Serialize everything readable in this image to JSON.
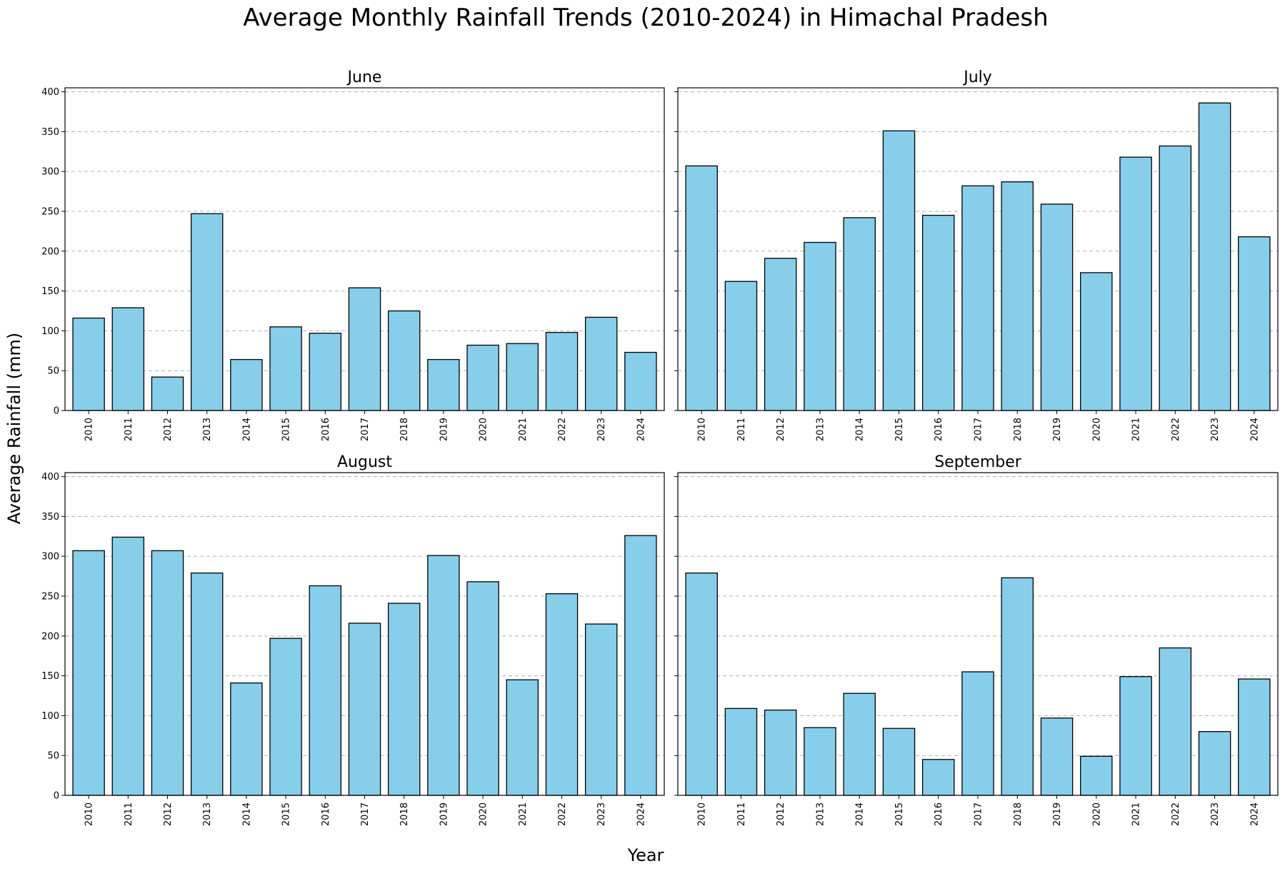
{
  "title": "Average Monthly Rainfall Trends (2010-2024) in Himachal Pradesh",
  "xlabel": "Year",
  "ylabel": "Average Rainfall (mm)",
  "colors": {
    "bar_fill": "#87CEEB",
    "bar_edge": "#000000",
    "grid": "#b0b0b0"
  },
  "chart_data": [
    {
      "type": "bar",
      "title": "June",
      "categories": [
        "2010",
        "2011",
        "2012",
        "2013",
        "2014",
        "2015",
        "2016",
        "2017",
        "2018",
        "2019",
        "2020",
        "2021",
        "2022",
        "2023",
        "2024"
      ],
      "values": [
        116,
        129,
        42,
        247,
        64,
        105,
        97,
        154,
        125,
        64,
        82,
        84,
        98,
        117,
        73
      ],
      "ylim": [
        0,
        405
      ],
      "yticks": [
        0,
        50,
        100,
        150,
        200,
        250,
        300,
        350,
        400
      ],
      "grid": true
    },
    {
      "type": "bar",
      "title": "July",
      "categories": [
        "2010",
        "2011",
        "2012",
        "2013",
        "2014",
        "2015",
        "2016",
        "2017",
        "2018",
        "2019",
        "2020",
        "2021",
        "2022",
        "2023",
        "2024"
      ],
      "values": [
        307,
        162,
        191,
        211,
        242,
        351,
        245,
        282,
        287,
        259,
        173,
        318,
        332,
        386,
        218
      ],
      "ylim": [
        0,
        405
      ],
      "yticks": [
        0,
        50,
        100,
        150,
        200,
        250,
        300,
        350,
        400
      ],
      "grid": true
    },
    {
      "type": "bar",
      "title": "August",
      "categories": [
        "2010",
        "2011",
        "2012",
        "2013",
        "2014",
        "2015",
        "2016",
        "2017",
        "2018",
        "2019",
        "2020",
        "2021",
        "2022",
        "2023",
        "2024"
      ],
      "values": [
        307,
        324,
        307,
        279,
        141,
        197,
        263,
        216,
        241,
        301,
        268,
        145,
        253,
        215,
        326
      ],
      "ylim": [
        0,
        405
      ],
      "yticks": [
        0,
        50,
        100,
        150,
        200,
        250,
        300,
        350,
        400
      ],
      "grid": true
    },
    {
      "type": "bar",
      "title": "September",
      "categories": [
        "2010",
        "2011",
        "2012",
        "2013",
        "2014",
        "2015",
        "2016",
        "2017",
        "2018",
        "2019",
        "2020",
        "2021",
        "2022",
        "2023",
        "2024"
      ],
      "values": [
        279,
        109,
        107,
        85,
        128,
        84,
        45,
        155,
        273,
        97,
        49,
        149,
        185,
        80,
        146
      ],
      "ylim": [
        0,
        405
      ],
      "yticks": [
        0,
        50,
        100,
        150,
        200,
        250,
        300,
        350,
        400
      ],
      "grid": true
    }
  ]
}
